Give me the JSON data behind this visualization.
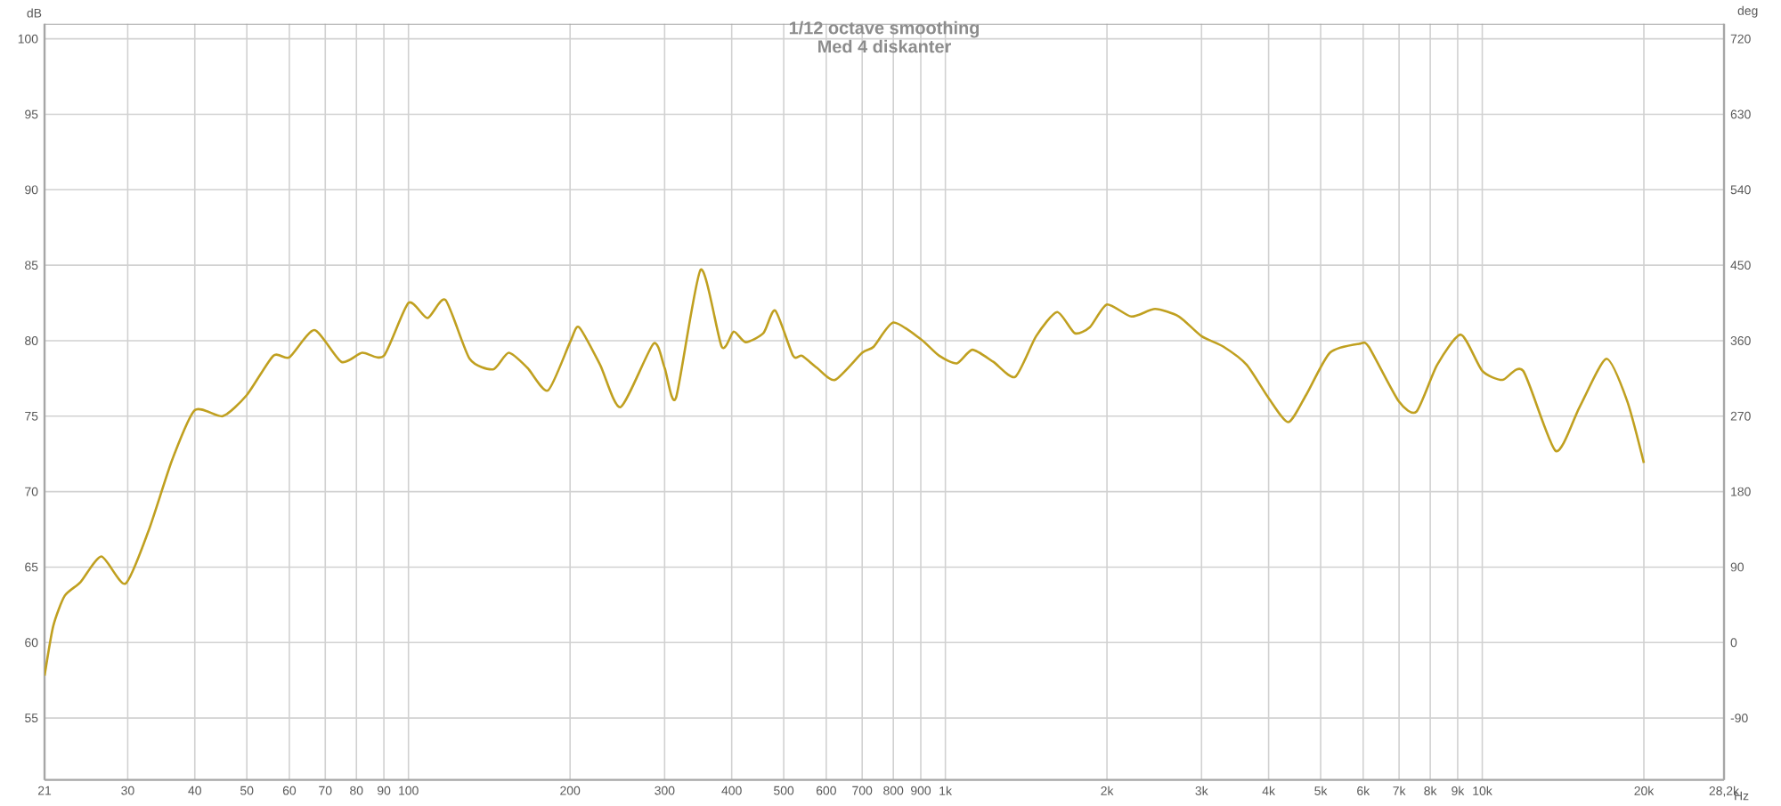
{
  "chart_data": {
    "type": "line",
    "title": "1/12 octave smoothing",
    "subtitle": "Med 4 diskanter",
    "xlabel": "Hz",
    "ylabel": "dB",
    "y2label": "deg",
    "x": [
      21,
      21.8,
      22.9,
      24.5,
      26.8,
      29.7,
      32.8,
      36.3,
      40,
      45.1,
      50,
      56,
      60,
      66.8,
      75,
      82,
      90,
      100,
      108.5,
      117.2,
      130,
      143.8,
      153.7,
      166.6,
      181.9,
      200,
      207.8,
      227.5,
      248.4,
      286,
      300,
      314.9,
      350.2,
      383.3,
      403.4,
      424.6,
      458.3,
      482.1,
      520.5,
      540.6,
      576.7,
      622.9,
      700,
      735.5,
      800,
      900,
      974,
      1051,
      1123,
      1228,
      1349,
      1476,
      1615,
      1742,
      1859,
      2000,
      2221,
      2458,
      2723,
      3000,
      3297,
      3642,
      4000,
      4353,
      4698,
      5203,
      5915,
      6146,
      6985,
      7540,
      8241,
      9127,
      10000,
      10900,
      11919,
      13700,
      15180,
      17030,
      18620,
      20000
    ],
    "series": [
      {
        "color": "#c0a020",
        "values": [
          57.8,
          61.1,
          63.1,
          64.0,
          65.7,
          63.9,
          67.4,
          72.1,
          75.4,
          75.0,
          76.4,
          79.0,
          78.9,
          80.7,
          78.6,
          79.2,
          79.0,
          82.5,
          81.5,
          82.7,
          78.8,
          78.1,
          79.2,
          78.2,
          76.7,
          79.9,
          80.9,
          78.4,
          75.6,
          79.8,
          78.2,
          76.2,
          84.7,
          79.6,
          80.6,
          79.9,
          80.5,
          82.0,
          79.0,
          79.0,
          78.2,
          77.4,
          79.2,
          79.6,
          81.2,
          80.1,
          79.0,
          78.5,
          79.4,
          78.6,
          77.6,
          80.3,
          81.9,
          80.5,
          80.9,
          82.4,
          81.6,
          82.1,
          81.6,
          80.3,
          79.6,
          78.4,
          76.2,
          74.6,
          76.4,
          79.2,
          79.8,
          79.6,
          76.0,
          75.3,
          78.4,
          80.4,
          78.0,
          77.4,
          78.0,
          72.7,
          75.6,
          78.8,
          76.0,
          71.9
        ]
      }
    ],
    "xlim": [
      21,
      28200
    ],
    "ylim": [
      50.9,
      101
    ],
    "y2lim": [
      -163.8,
      738
    ],
    "xticks": [
      21,
      30,
      40,
      50,
      60,
      70,
      80,
      90,
      100,
      200,
      300,
      400,
      500,
      600,
      700,
      800,
      900,
      {
        "value": 1000,
        "label": "1k"
      },
      {
        "value": 2000,
        "label": "2k"
      },
      {
        "value": 3000,
        "label": "3k"
      },
      {
        "value": 4000,
        "label": "4k"
      },
      {
        "value": 5000,
        "label": "5k"
      },
      {
        "value": 6000,
        "label": "6k"
      },
      {
        "value": 7000,
        "label": "7k"
      },
      {
        "value": 8000,
        "label": "8k"
      },
      {
        "value": 9000,
        "label": "9k"
      },
      {
        "value": 10000,
        "label": "10k"
      },
      {
        "value": 20000,
        "label": "20k"
      },
      {
        "value": 28200,
        "label": "28,2k"
      }
    ],
    "yticks": [
      55,
      60,
      65,
      70,
      75,
      80,
      85,
      90,
      95,
      100
    ],
    "y2ticks": [
      -90,
      0,
      90,
      180,
      270,
      360,
      450,
      540,
      630,
      720
    ],
    "grid": true,
    "log": "x"
  }
}
